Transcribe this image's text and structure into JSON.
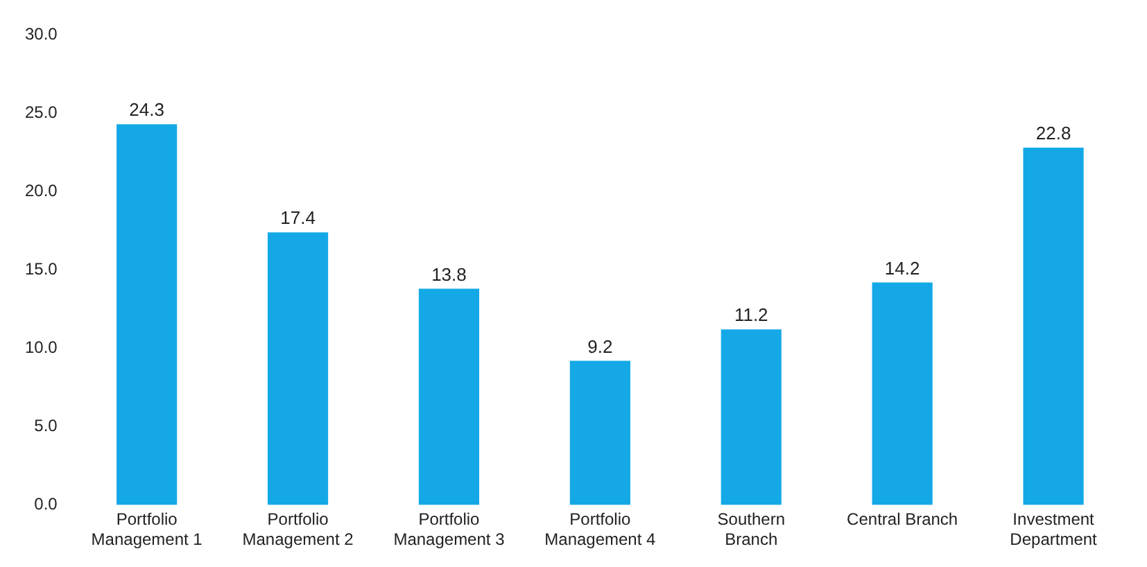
{
  "chart_data": {
    "type": "bar",
    "categories": [
      "Portfolio\nManagement 1",
      "Portfolio\nManagement 2",
      "Portfolio\nManagement 3",
      "Portfolio\nManagement 4",
      "Southern\nBranch",
      "Central Branch",
      "Investment\nDepartment"
    ],
    "values": [
      24.3,
      17.4,
      13.8,
      9.2,
      11.2,
      14.2,
      22.8
    ],
    "color": "#14a9e6",
    "ylim": [
      0,
      30
    ],
    "yticks": [
      {
        "value": 0,
        "label": "0.0"
      },
      {
        "value": 5,
        "label": "5.0"
      },
      {
        "value": 10,
        "label": "10.0"
      },
      {
        "value": 15,
        "label": "15.0"
      },
      {
        "value": 20,
        "label": "20.0"
      },
      {
        "value": 25,
        "label": "25.0"
      },
      {
        "value": 30,
        "label": "30.0"
      }
    ],
    "data_labels": true,
    "grid": false,
    "legend": false
  }
}
